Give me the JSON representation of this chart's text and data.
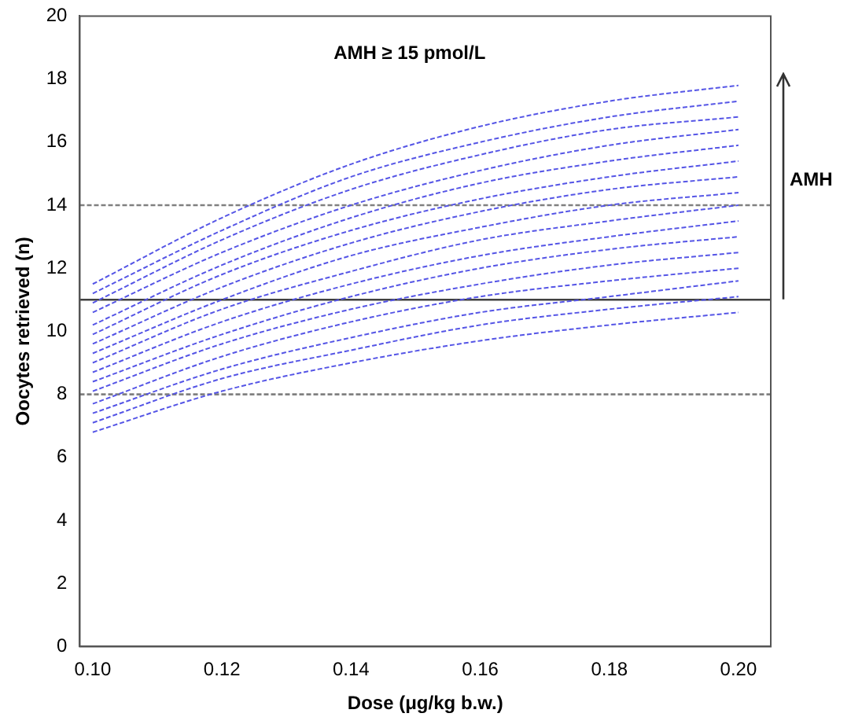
{
  "chart_data": {
    "type": "line",
    "xlabel": "Dose (μg/kg b.w.)",
    "ylabel": "Oocytes retrieved (n)",
    "annotations": [
      "AMH ≥ 15 pmol/L",
      "AMH"
    ],
    "x": [
      0.1,
      0.12,
      0.14,
      0.16,
      0.18,
      0.2
    ],
    "xlim": [
      0.098,
      0.205
    ],
    "xticks": [
      {
        "value": 0.1,
        "label": "0.10"
      },
      {
        "value": 0.12,
        "label": "0.12"
      },
      {
        "value": 0.14,
        "label": "0.14"
      },
      {
        "value": 0.16,
        "label": "0.16"
      },
      {
        "value": 0.18,
        "label": "0.18"
      },
      {
        "value": 0.2,
        "label": "0.20"
      }
    ],
    "ylim": [
      0,
      20
    ],
    "yticks": [
      0,
      2,
      4,
      6,
      8,
      10,
      12,
      14,
      16,
      18,
      20
    ],
    "grid": false,
    "legend": false,
    "marker": "none",
    "line_style": "dashed",
    "ref_lines": [
      {
        "axis": "y",
        "value": 8,
        "color": "#808080",
        "line_style": "dashed"
      },
      {
        "axis": "y",
        "value": 11,
        "color": "#404040",
        "line_style": "solid"
      },
      {
        "axis": "y",
        "value": 14,
        "color": "#808080",
        "line_style": "dashed"
      }
    ],
    "series": [
      {
        "color": "#5555e6",
        "values": [
          6.8,
          8.1,
          9.0,
          9.7,
          10.2,
          10.6
        ]
      },
      {
        "color": "#5555e6",
        "values": [
          7.1,
          8.5,
          9.4,
          10.2,
          10.7,
          11.1
        ]
      },
      {
        "color": "#5555e6",
        "values": [
          7.4,
          8.8,
          9.8,
          10.6,
          11.1,
          11.6
        ]
      },
      {
        "color": "#5555e6",
        "values": [
          7.7,
          9.2,
          10.3,
          11.1,
          11.6,
          12.0
        ]
      },
      {
        "color": "#5555e6",
        "values": [
          8.1,
          9.6,
          10.7,
          11.5,
          12.1,
          12.5
        ]
      },
      {
        "color": "#5555e6",
        "values": [
          8.4,
          9.9,
          11.1,
          12.0,
          12.6,
          13.0
        ]
      },
      {
        "color": "#5555e6",
        "values": [
          8.7,
          10.3,
          11.5,
          12.4,
          13.0,
          13.5
        ]
      },
      {
        "color": "#5555e6",
        "values": [
          9.0,
          10.7,
          11.9,
          12.9,
          13.5,
          14.0
        ]
      },
      {
        "color": "#5555e6",
        "values": [
          9.3,
          11.0,
          12.4,
          13.3,
          14.0,
          14.4
        ]
      },
      {
        "color": "#5555e6",
        "values": [
          9.6,
          11.4,
          12.8,
          13.8,
          14.5,
          14.9
        ]
      },
      {
        "color": "#5555e6",
        "values": [
          9.9,
          11.8,
          13.2,
          14.2,
          14.9,
          15.4
        ]
      },
      {
        "color": "#5555e6",
        "values": [
          10.2,
          12.1,
          13.6,
          14.7,
          15.4,
          15.9
        ]
      },
      {
        "color": "#5555e6",
        "values": [
          10.6,
          12.5,
          14.0,
          15.1,
          15.9,
          16.4
        ]
      },
      {
        "color": "#5555e6",
        "values": [
          10.9,
          12.9,
          14.5,
          15.6,
          16.4,
          16.8
        ]
      },
      {
        "color": "#5555e6",
        "values": [
          11.2,
          13.2,
          14.9,
          16.0,
          16.8,
          17.3
        ]
      },
      {
        "color": "#5555e6",
        "values": [
          11.5,
          13.6,
          15.3,
          16.5,
          17.3,
          17.8
        ]
      }
    ]
  }
}
